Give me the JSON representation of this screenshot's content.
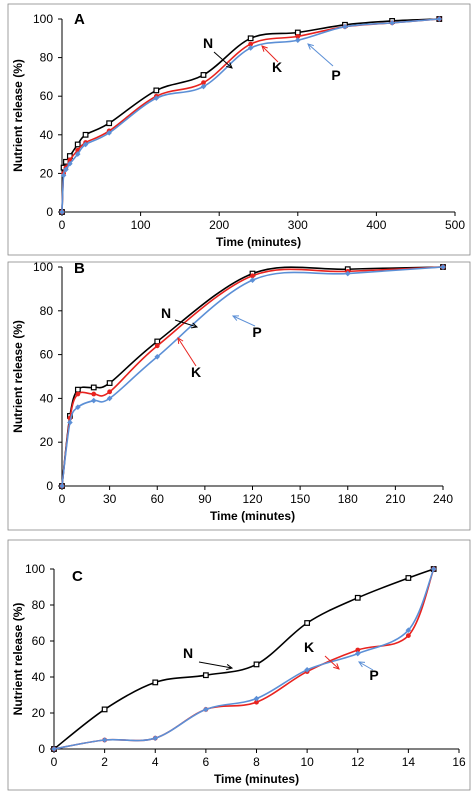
{
  "chart_data": [
    {
      "type": "line",
      "panel_label": "A",
      "xlabel": "Time (minutes)",
      "ylabel": "Nutrient release (%)",
      "xlim": [
        0,
        500
      ],
      "ylim": [
        0,
        100
      ],
      "xticks": [
        0,
        100,
        200,
        300,
        400,
        500
      ],
      "yticks": [
        0,
        20,
        40,
        60,
        80,
        100
      ],
      "grid": false,
      "series": [
        {
          "name": "N",
          "color": "#000000",
          "marker": "square-open",
          "x": [
            0,
            2,
            5,
            10,
            20,
            30,
            60,
            120,
            180,
            240,
            300,
            360,
            420,
            480
          ],
          "y": [
            0,
            23,
            26,
            29,
            35,
            40,
            46,
            63,
            71,
            90,
            93,
            97,
            99,
            100
          ]
        },
        {
          "name": "K",
          "color": "#e8231f",
          "marker": "dot",
          "x": [
            0,
            2,
            5,
            10,
            20,
            30,
            60,
            120,
            180,
            240,
            300,
            360,
            420,
            480
          ],
          "y": [
            0,
            20,
            23,
            27,
            32,
            36,
            42,
            60,
            67,
            87,
            91,
            96,
            98,
            100
          ]
        },
        {
          "name": "P",
          "color": "#5b8fd6",
          "marker": "diamond",
          "x": [
            0,
            2,
            5,
            10,
            20,
            30,
            60,
            120,
            180,
            240,
            300,
            360,
            420,
            480
          ],
          "y": [
            0,
            19,
            22,
            25,
            30,
            35,
            41,
            59,
            65,
            85,
            89,
            96,
            98,
            100
          ]
        }
      ],
      "annotations": [
        "N",
        "K",
        "P"
      ]
    },
    {
      "type": "line",
      "panel_label": "B",
      "xlabel": "Time (minutes)",
      "ylabel": "Nutrient release (%)",
      "xlim": [
        0,
        240
      ],
      "ylim": [
        0,
        100
      ],
      "xticks": [
        0,
        30,
        60,
        90,
        120,
        150,
        180,
        210,
        240
      ],
      "yticks": [
        0,
        20,
        40,
        60,
        80,
        100
      ],
      "grid": false,
      "series": [
        {
          "name": "N",
          "color": "#000000",
          "marker": "square-open",
          "x": [
            0,
            5,
            10,
            20,
            30,
            60,
            120,
            180,
            240
          ],
          "y": [
            0,
            32,
            44,
            45,
            47,
            66,
            97,
            99,
            100
          ]
        },
        {
          "name": "K",
          "color": "#e8231f",
          "marker": "dot",
          "x": [
            0,
            5,
            10,
            20,
            30,
            60,
            120,
            180,
            240
          ],
          "y": [
            0,
            31,
            42,
            42,
            43,
            64,
            96,
            98,
            100
          ]
        },
        {
          "name": "P",
          "color": "#5b8fd6",
          "marker": "diamond",
          "x": [
            0,
            5,
            10,
            20,
            30,
            60,
            120,
            180,
            240
          ],
          "y": [
            0,
            29,
            36,
            39,
            40,
            59,
            94,
            97,
            100
          ]
        }
      ],
      "annotations": [
        "N",
        "K",
        "P"
      ]
    },
    {
      "type": "line",
      "panel_label": "C",
      "xlabel": "Time (minutes)",
      "ylabel": "Nutrient release (%)",
      "xlim": [
        0,
        16
      ],
      "ylim": [
        0,
        100
      ],
      "xticks": [
        0,
        2,
        4,
        6,
        8,
        10,
        12,
        14,
        16
      ],
      "yticks": [
        0,
        20,
        40,
        60,
        80,
        100
      ],
      "grid": false,
      "series": [
        {
          "name": "N",
          "color": "#000000",
          "marker": "square-open",
          "x": [
            0,
            2,
            4,
            6,
            8,
            10,
            12,
            14,
            15
          ],
          "y": [
            0,
            22,
            37,
            41,
            47,
            70,
            84,
            95,
            100
          ]
        },
        {
          "name": "K",
          "color": "#e8231f",
          "marker": "dot",
          "x": [
            0,
            2,
            4,
            6,
            8,
            10,
            12,
            14,
            15
          ],
          "y": [
            0,
            5,
            6,
            22,
            26,
            43,
            55,
            63,
            100
          ]
        },
        {
          "name": "P",
          "color": "#5b8fd6",
          "marker": "diamond",
          "x": [
            0,
            2,
            4,
            6,
            8,
            10,
            12,
            14,
            15
          ],
          "y": [
            0,
            5,
            6,
            22,
            28,
            44,
            53,
            66,
            100
          ]
        }
      ],
      "annotations": [
        "N",
        "K",
        "P"
      ]
    }
  ]
}
